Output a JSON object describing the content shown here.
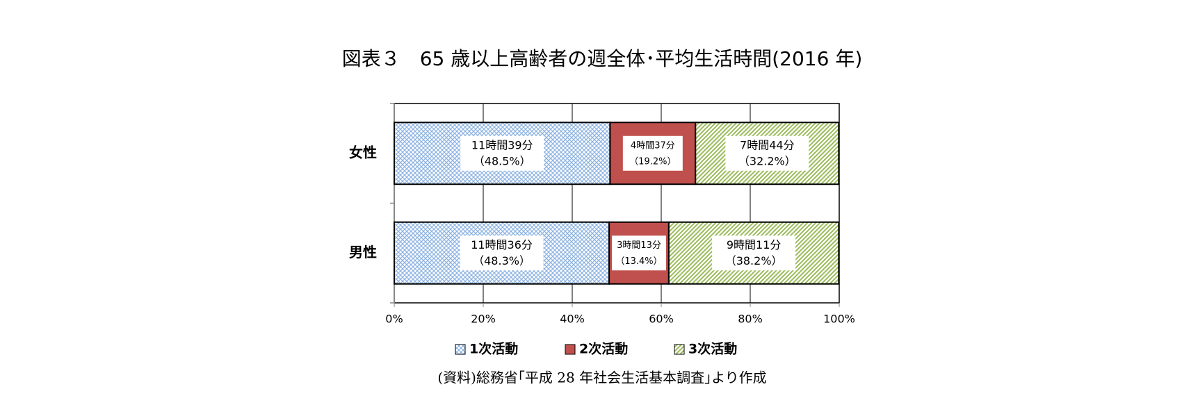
{
  "chart_data": {
    "type": "stacked_barh",
    "title": "図表３　65 歳以上高齢者の週全体･平均生活時間(2016 年)",
    "source": "(資料)総務省｢平成 28 年社会生活基本調査｣より作成",
    "categories": [
      "女性",
      "男性"
    ],
    "series": [
      {
        "name": "1次活動",
        "color": "#8db3e2",
        "pattern": "crosshatch",
        "values": [
          48.5,
          48.3
        ],
        "value_labels": [
          "（48.5%）",
          "（48.3%）"
        ],
        "time_labels": [
          "11時間39分",
          "11時間36分"
        ]
      },
      {
        "name": "2次活動",
        "color": "#c0504d",
        "pattern": "solid",
        "values": [
          19.2,
          13.4
        ],
        "value_labels": [
          "（19.2%）",
          "（13.4%）"
        ],
        "time_labels": [
          "4時間37分",
          "3時間13分"
        ]
      },
      {
        "name": "3次活動",
        "color": "#9bbb59",
        "pattern": "diagonal",
        "values": [
          32.2,
          38.2
        ],
        "value_labels": [
          "（32.2%）",
          "（38.2%）"
        ],
        "time_labels": [
          "7時間44分",
          "9時間11分"
        ]
      }
    ],
    "xlim": [
      0,
      100
    ],
    "xticks": [
      {
        "value": 0,
        "label": "0%"
      },
      {
        "value": 20,
        "label": "20%"
      },
      {
        "value": 40,
        "label": "40%"
      },
      {
        "value": 60,
        "label": "60%"
      },
      {
        "value": 80,
        "label": "80%"
      },
      {
        "value": 100,
        "label": "100%"
      }
    ],
    "grid": true,
    "legend": "bottom"
  }
}
